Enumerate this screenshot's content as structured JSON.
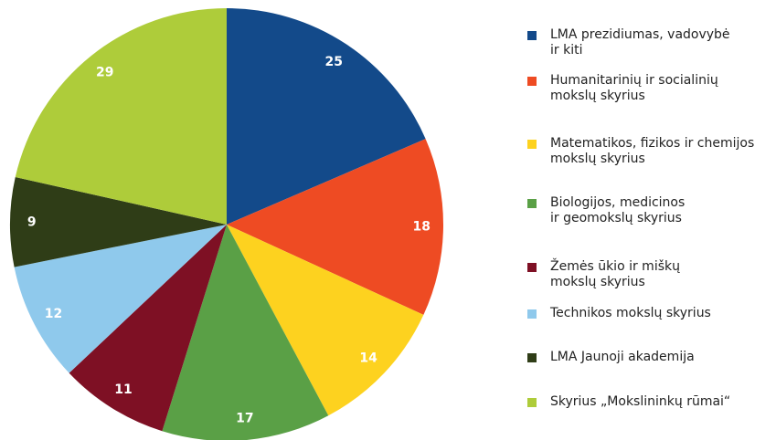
{
  "chart_data": {
    "type": "pie",
    "categories": [
      "LMA prezidiumas, vadovybė\nir kiti",
      "Humanitarinių ir socialinių\nmokslų skyrius",
      "Matematikos, fizikos ir chemijos\nmokslų skyrius",
      "Biologijos, medicinos\nir geomokslų skyrius",
      "Žemės ūkio ir miškų\nmokslų skyrius",
      "Technikos mokslų skyrius",
      "LMA Jaunoji akademija",
      "Skyrius „Mokslininkų rūmai“"
    ],
    "values": [
      25,
      18,
      14,
      17,
      11,
      12,
      9,
      29
    ],
    "colors": [
      "#134a8a",
      "#ee4b23",
      "#fdd21f",
      "#5aa046",
      "#7e1024",
      "#8fc9ec",
      "#2f3d17",
      "#aecc3a"
    ]
  }
}
